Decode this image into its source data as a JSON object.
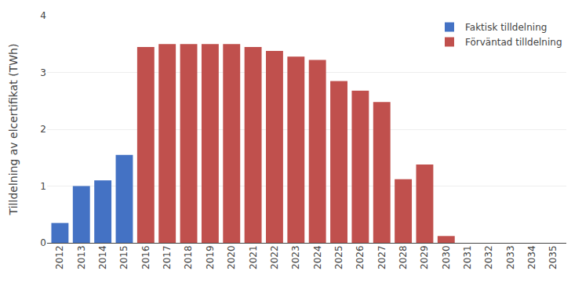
{
  "chart_data": {
    "type": "bar",
    "ylabel": "Tilldelning av elcertifikat (TWh)",
    "categories": [
      "2012",
      "2013",
      "2014",
      "2015",
      "2016",
      "2017",
      "2018",
      "2019",
      "2020",
      "2021",
      "2022",
      "2023",
      "2024",
      "2025",
      "2026",
      "2027",
      "2028",
      "2029",
      "2030",
      "2031",
      "2032",
      "2033",
      "2034",
      "2035"
    ],
    "series": [
      {
        "name": "Förväntad tilldelning",
        "color": "#C0504D",
        "values": [
          0,
          0,
          0,
          0,
          3.45,
          3.5,
          3.5,
          3.5,
          3.5,
          3.45,
          3.38,
          3.28,
          3.22,
          2.85,
          2.68,
          2.48,
          1.12,
          1.38,
          0.12,
          0,
          0,
          0,
          0,
          0
        ]
      },
      {
        "name": "Faktisk tilldelning",
        "color": "#4472C4",
        "values": [
          0.35,
          1.0,
          1.1,
          1.55,
          0,
          0,
          0,
          0,
          0,
          0,
          0,
          0,
          0,
          0,
          0,
          0,
          0,
          0,
          0,
          0,
          0,
          0,
          0,
          0
        ]
      }
    ],
    "stacked": false,
    "ylim": [
      0,
      4
    ],
    "yticks": [
      0,
      1,
      2,
      3,
      4
    ],
    "grid": true,
    "legend": "upper right"
  }
}
